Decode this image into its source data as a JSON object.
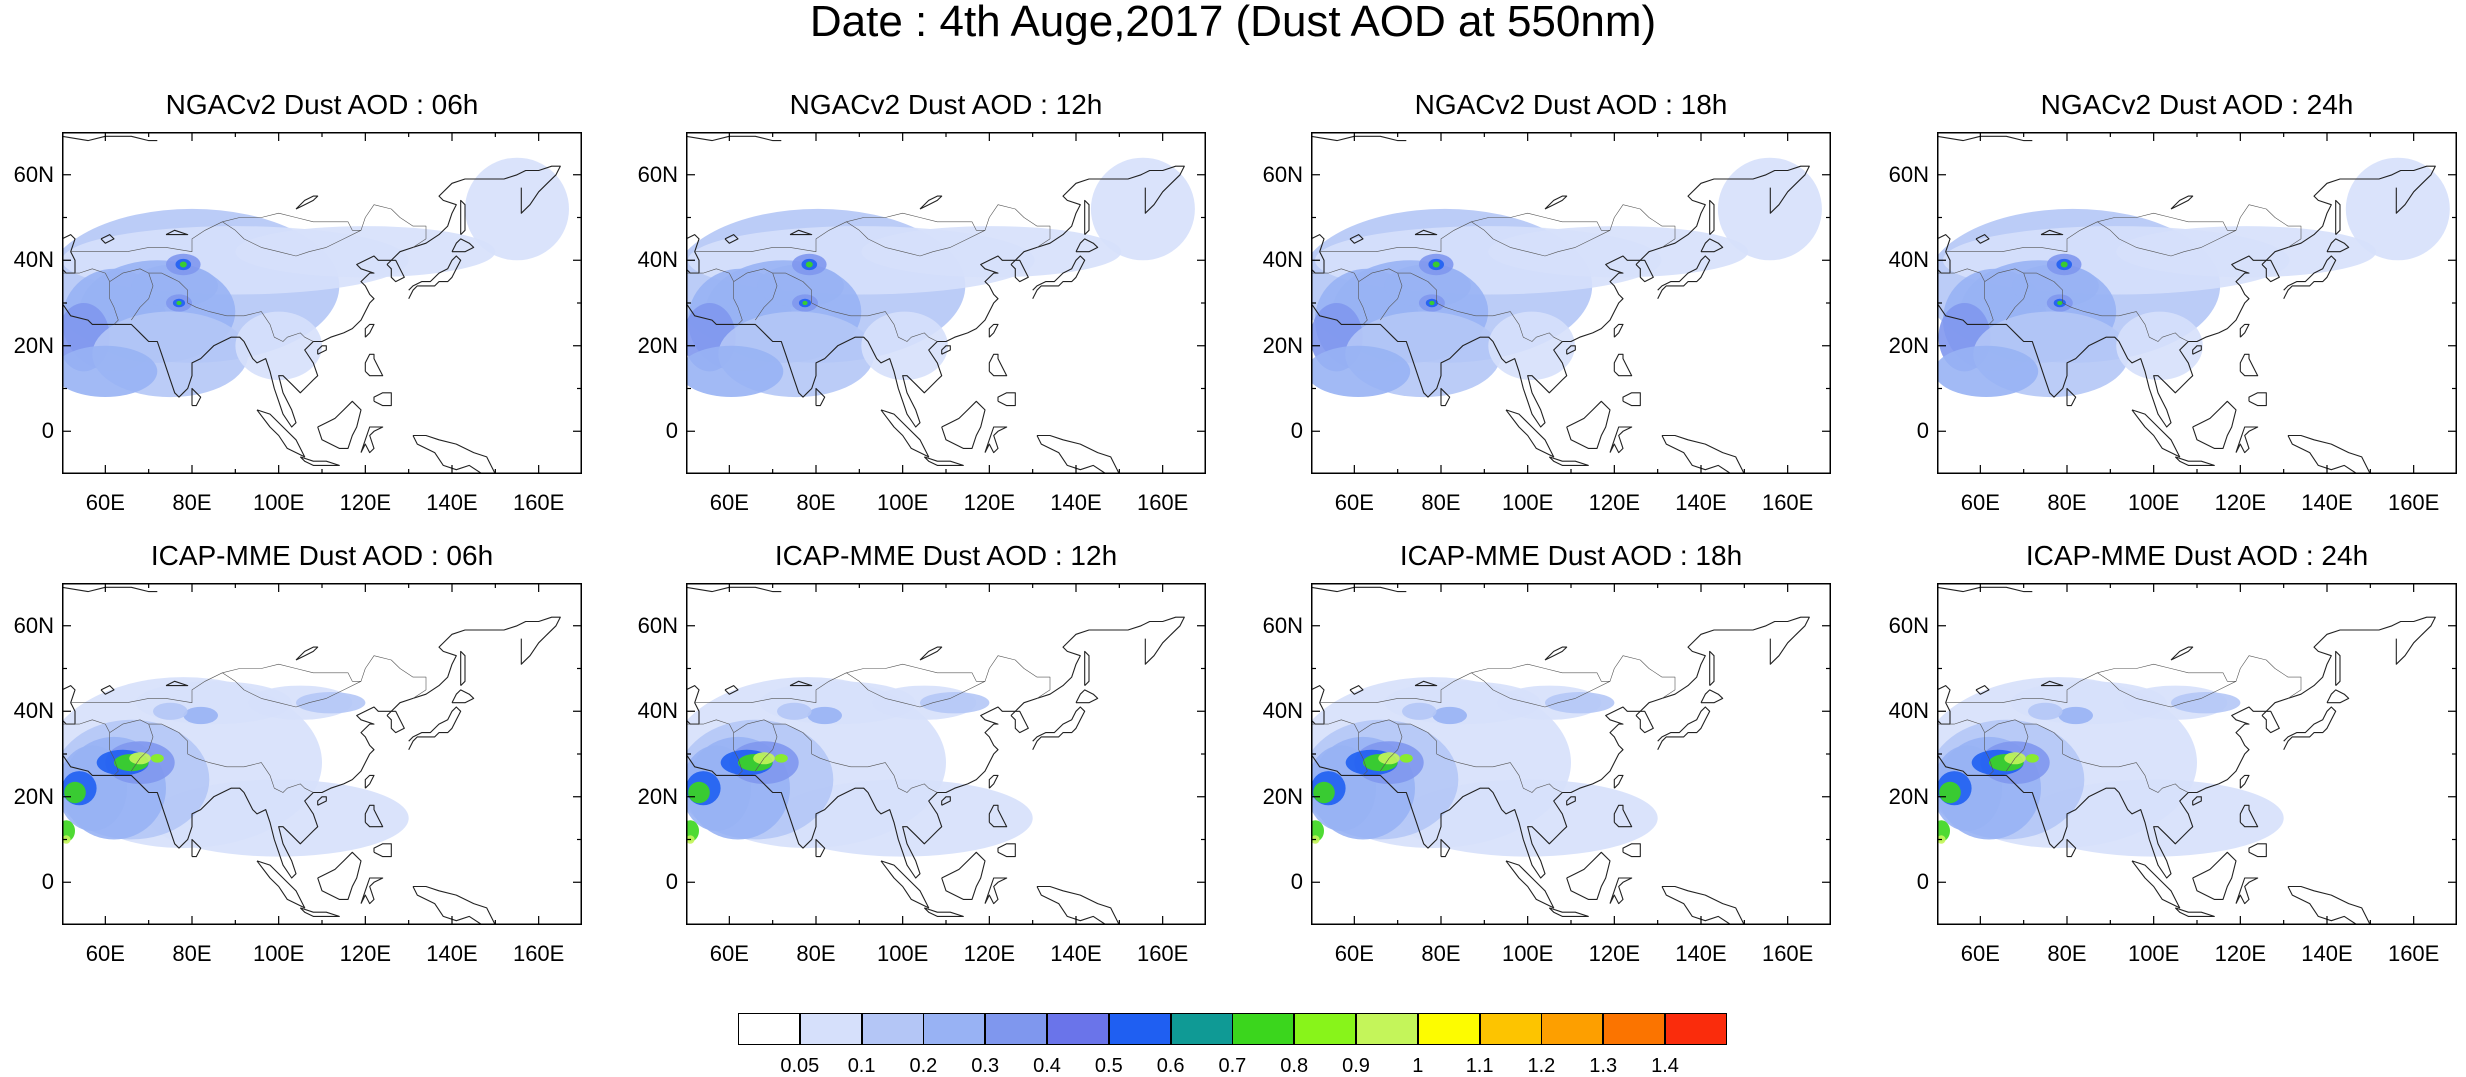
{
  "title": "Date : 4th Auge,2017 (Dust AOD at 550nm)",
  "map_extent": {
    "lon": [
      50,
      170
    ],
    "lat": [
      -10,
      70
    ]
  },
  "lat_ticks": [
    "60N",
    "40N",
    "20N",
    "0"
  ],
  "lon_ticks": [
    "60E",
    "80E",
    "100E",
    "120E",
    "140E",
    "160E"
  ],
  "panels": [
    {
      "title": "NGACv2 Dust AOD : 06h"
    },
    {
      "title": "NGACv2 Dust AOD : 12h"
    },
    {
      "title": "NGACv2 Dust AOD : 18h"
    },
    {
      "title": "NGACv2 Dust AOD : 24h"
    },
    {
      "title": "ICAP-MME Dust AOD : 06h"
    },
    {
      "title": "ICAP-MME Dust AOD : 12h"
    },
    {
      "title": "ICAP-MME Dust AOD : 18h"
    },
    {
      "title": "ICAP-MME Dust AOD : 24h"
    }
  ],
  "colorbar": {
    "levels": [
      "0.05",
      "0.1",
      "0.2",
      "0.3",
      "0.4",
      "0.5",
      "0.6",
      "0.7",
      "0.8",
      "0.9",
      "1",
      "1.1",
      "1.2",
      "1.3",
      "1.4"
    ],
    "colors": [
      "#ffffff",
      "#d6e0fb",
      "#b4c6f6",
      "#98b2f4",
      "#7f97ee",
      "#6a74ea",
      "#1f5ff2",
      "#0f9a95",
      "#3bd61d",
      "#88f41a",
      "#c4f55a",
      "#fdfc00",
      "#fdc400",
      "#fd9f00",
      "#fb7400",
      "#fa2c0c"
    ]
  }
}
